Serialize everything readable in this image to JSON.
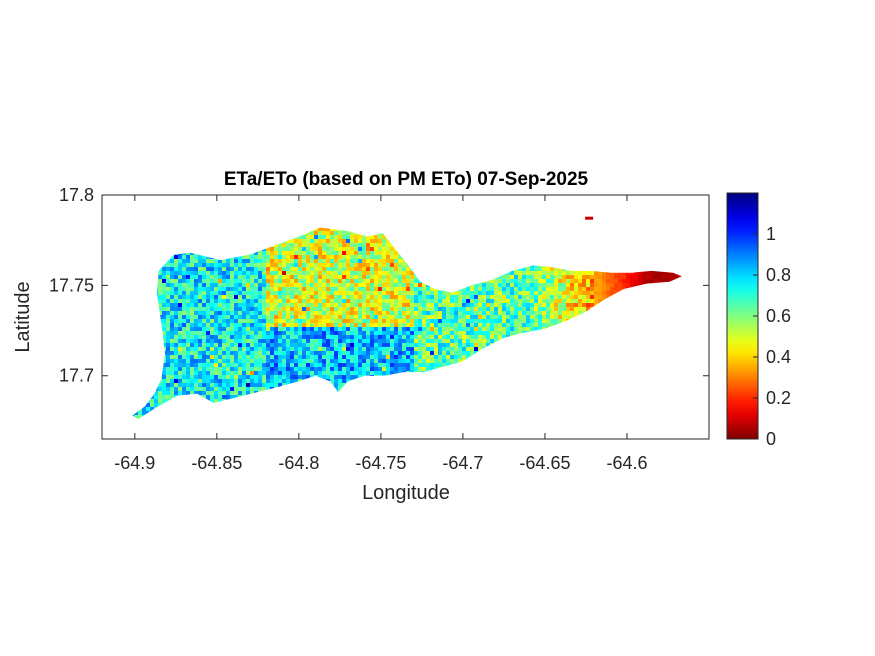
{
  "chart_data": {
    "type": "heatmap",
    "title": "ETa/ETo (based on PM ETo) 07-Sep-2025",
    "xlabel": "Longitude",
    "ylabel": "Latitude",
    "xlim": [
      -64.92,
      -64.55
    ],
    "ylim": [
      17.665,
      17.8
    ],
    "x_ticks": [
      -64.9,
      -64.85,
      -64.8,
      -64.75,
      -64.7,
      -64.65,
      -64.6
    ],
    "x_tick_labels": [
      "-64.9",
      "-64.85",
      "-64.8",
      "-64.75",
      "-64.7",
      "-64.65",
      "-64.6"
    ],
    "y_ticks": [
      17.7,
      17.75,
      17.8
    ],
    "y_tick_labels": [
      "17.7",
      "17.75",
      "17.8"
    ],
    "colormap": "jet",
    "clim": [
      0,
      1.2
    ],
    "colorbar_ticks": [
      0,
      0.2,
      0.4,
      0.6,
      0.8,
      1
    ],
    "colorbar_tick_labels": [
      "0",
      "0.2",
      "0.4",
      "0.6",
      "0.8",
      "1"
    ],
    "region_values": [
      {
        "region": "west",
        "lon_range": [
          -64.9,
          -64.82
        ],
        "typical_value": 0.75
      },
      {
        "region": "central-north",
        "lon_range": [
          -64.82,
          -64.73
        ],
        "typical_value": 0.5
      },
      {
        "region": "central-south",
        "lon_range": [
          -64.82,
          -64.73
        ],
        "typical_value": 0.82
      },
      {
        "region": "east-central",
        "lon_range": [
          -64.73,
          -64.66
        ],
        "typical_value": 0.65
      },
      {
        "region": "east",
        "lon_range": [
          -64.66,
          -64.62
        ],
        "typical_value": 0.35
      },
      {
        "region": "east-end",
        "lon_range": [
          -64.62,
          -64.565
        ],
        "typical_value": 0.05
      }
    ]
  }
}
